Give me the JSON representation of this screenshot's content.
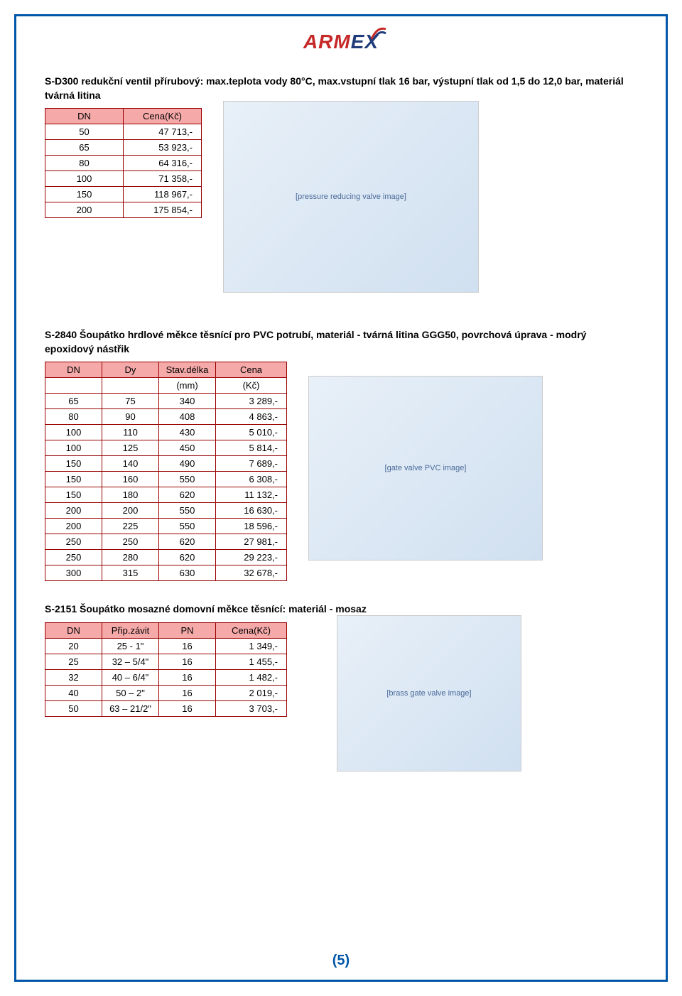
{
  "logo": {
    "part1": "ARM",
    "part2": "EX"
  },
  "colors": {
    "page_border": "#0056a8",
    "table_border": "#990000",
    "header_bg": "#f6a9a9",
    "logo_red": "#c62828",
    "logo_blue": "#203c7a"
  },
  "section1": {
    "title": "S-D300 redukční ventil přírubový: max.teplota vody 80°C, max.vstupní tlak 16 bar, výstupní tlak od 1,5 do 12,0 bar, materiál tvárná litina",
    "headers": [
      "DN",
      "Cena(Kč)"
    ],
    "rows": [
      [
        "50",
        "47 713,-"
      ],
      [
        "65",
        "53 923,-"
      ],
      [
        "80",
        "64 316,-"
      ],
      [
        "100",
        "71 358,-"
      ],
      [
        "150",
        "118 967,-"
      ],
      [
        "200",
        "175 854,-"
      ]
    ],
    "image_alt": "[pressure reducing valve image]"
  },
  "section2": {
    "title": "S-2840 Šoupátko hrdlové měkce těsnící pro PVC potrubí, materiál - tvárná litina GGG50, povrchová úprava - modrý epoxidový nástřik",
    "headers": [
      "DN",
      "Dy",
      "Stav.délka",
      "Cena"
    ],
    "subheaders": [
      "",
      "",
      "(mm)",
      "(Kč)"
    ],
    "rows": [
      [
        "65",
        "75",
        "340",
        "3 289,-"
      ],
      [
        "80",
        "90",
        "408",
        "4 863,-"
      ],
      [
        "100",
        "110",
        "430",
        "5 010,-"
      ],
      [
        "100",
        "125",
        "450",
        "5 814,-"
      ],
      [
        "150",
        "140",
        "490",
        "7 689,-"
      ],
      [
        "150",
        "160",
        "550",
        "6 308,-"
      ],
      [
        "150",
        "180",
        "620",
        "11 132,-"
      ],
      [
        "200",
        "200",
        "550",
        "16 630,-"
      ],
      [
        "200",
        "225",
        "550",
        "18 596,-"
      ],
      [
        "250",
        "250",
        "620",
        "27 981,-"
      ],
      [
        "250",
        "280",
        "620",
        "29 223,-"
      ],
      [
        "300",
        "315",
        "630",
        "32 678,-"
      ]
    ],
    "image_alt": "[gate valve PVC image]"
  },
  "section3": {
    "title": "S-2151 Šoupátko mosazné domovní měkce těsnící: materiál - mosaz",
    "headers": [
      "DN",
      "Přip.závit",
      "PN",
      "Cena(Kč)"
    ],
    "rows": [
      [
        "20",
        "25 - 1\"",
        "16",
        "1 349,-"
      ],
      [
        "25",
        "32 – 5/4\"",
        "16",
        "1 455,-"
      ],
      [
        "32",
        "40 – 6/4\"",
        "16",
        "1 482,-"
      ],
      [
        "40",
        "50 – 2\"",
        "16",
        "2 019,-"
      ],
      [
        "50",
        "63 – 21/2\"",
        "16",
        "3 703,-"
      ]
    ],
    "image_alt": "[brass gate valve image]"
  },
  "page_number": "(5)"
}
